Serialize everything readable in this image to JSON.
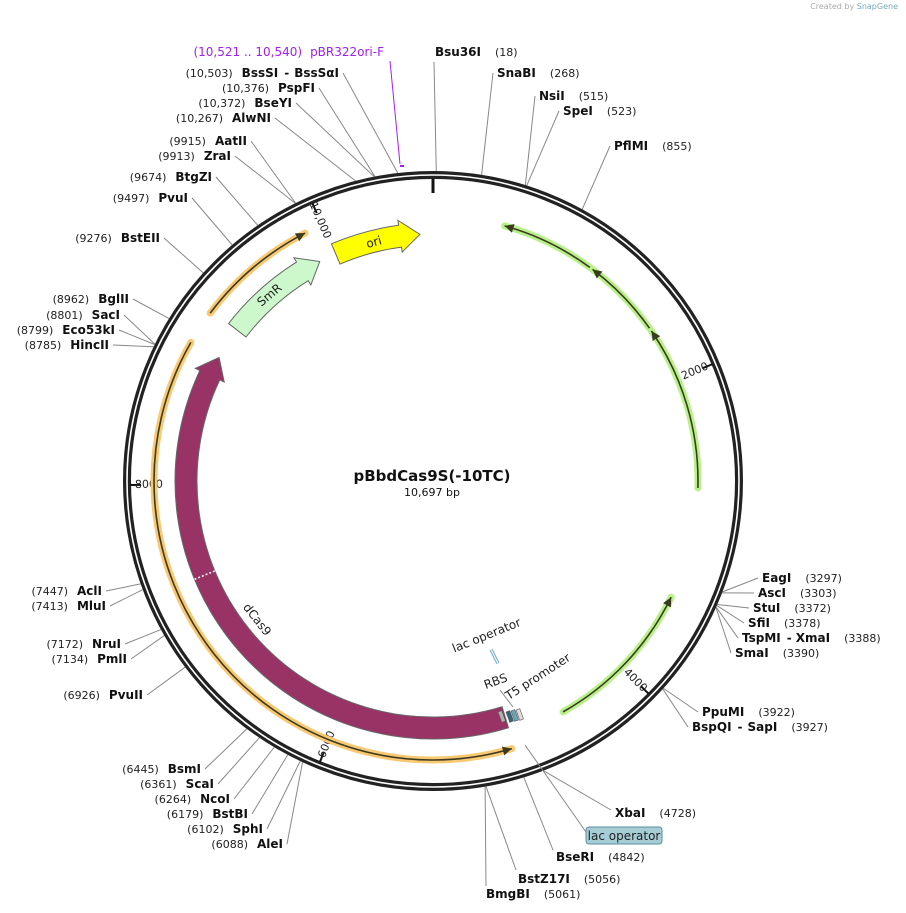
{
  "credit": {
    "prefix": "Created by",
    "brand": "SnapGene"
  },
  "plasmid": {
    "name": "pBbdCas9S(-10TC)",
    "length_label": "10,697 bp",
    "length_bp": 10697
  },
  "ticks": [
    {
      "bp": 2000,
      "label": "2000"
    },
    {
      "bp": 4000,
      "label": "4000"
    },
    {
      "bp": 6000,
      "label": "6000"
    },
    {
      "bp": 8000,
      "label": "8000"
    },
    {
      "bp": 10000,
      "label": "10,000"
    }
  ],
  "features": [
    {
      "name": "ori",
      "start": 10008,
      "end": 10607,
      "strand": 1,
      "style": "wide",
      "color": "#ffff00"
    },
    {
      "name": "SmR",
      "start": 9140,
      "end": 9886,
      "strand": 1,
      "style": "wide",
      "color": "#ccf8cc"
    },
    {
      "name": "dCas9",
      "start": 4843,
      "end": 8914,
      "strand": 1,
      "style": "wide",
      "color": "#993366"
    },
    {
      "name": "",
      "start": 9122,
      "end": 9886,
      "strand": 1,
      "style": "thin",
      "color": "#f9c872"
    },
    {
      "name": "",
      "start": 4861,
      "end": 8908,
      "strand": -1,
      "style": "thin",
      "color": "#f9c872"
    },
    {
      "name": "",
      "start": 466,
      "end": 1080,
      "strand": -1,
      "style": "thin",
      "color": "#b8f08a"
    },
    {
      "name": "",
      "start": 1100,
      "end": 1630,
      "strand": -1,
      "style": "thin",
      "color": "#b8f08a"
    },
    {
      "name": "",
      "start": 1650,
      "end": 2719,
      "strand": -1,
      "style": "thin",
      "color": "#b8f08a"
    },
    {
      "name": "",
      "start": 3447,
      "end": 4475,
      "strand": -1,
      "style": "thin",
      "color": "#b8f08a"
    }
  ],
  "small_features": {
    "lac_operator": "lac operator",
    "rbs": "RBS",
    "t5_promoter": "T5 promoter",
    "lac_operator_badge": "lac operator"
  },
  "primer": {
    "range": "(10,521 .. 10,540)",
    "name": "pBR322ori-F",
    "pos": 10530,
    "color": "#a020f0"
  },
  "enzymes": [
    {
      "name": "Bsu36I",
      "pos": "(18)",
      "bp": 18,
      "side": "right"
    },
    {
      "name": "SnaBI",
      "pos": "(268)",
      "bp": 268,
      "side": "right"
    },
    {
      "name": "NsiI",
      "pos": "(515)",
      "bp": 515,
      "side": "right"
    },
    {
      "name": "SpeI",
      "pos": "(523)",
      "bp": 523,
      "side": "right"
    },
    {
      "name": "PflMI",
      "pos": "(855)",
      "bp": 855,
      "side": "right"
    },
    {
      "name": "EagI",
      "pos": "(3297)",
      "bp": 3297,
      "side": "right"
    },
    {
      "name": "AscI",
      "pos": "(3303)",
      "bp": 3303,
      "side": "right"
    },
    {
      "name": "StuI",
      "pos": "(3372)",
      "bp": 3372,
      "side": "right"
    },
    {
      "name": "SfiI",
      "pos": "(3378)",
      "bp": 3378,
      "side": "right"
    },
    {
      "name": "TspMI",
      "name2": "XmaI",
      "pos": "(3388)",
      "bp": 3388,
      "side": "right"
    },
    {
      "name": "SmaI",
      "pos": "(3390)",
      "bp": 3390,
      "side": "right"
    },
    {
      "name": "PpuMI",
      "pos": "(3922)",
      "bp": 3922,
      "side": "right"
    },
    {
      "name": "BspQI",
      "name2": "SapI",
      "pos": "(3927)",
      "bp": 3927,
      "side": "right"
    },
    {
      "name": "XbaI",
      "pos": "(4728)",
      "bp": 4728,
      "side": "right"
    },
    {
      "name": "BseRI",
      "pos": "(4842)",
      "bp": 4842,
      "side": "right"
    },
    {
      "name": "BstZ17I",
      "pos": "(5056)",
      "bp": 5056,
      "side": "right"
    },
    {
      "name": "BmgBI",
      "pos": "(5061)",
      "bp": 5061,
      "side": "right"
    },
    {
      "name": "AleI",
      "pos": "(6088)",
      "bp": 6088,
      "side": "left"
    },
    {
      "name": "SphI",
      "pos": "(6102)",
      "bp": 6102,
      "side": "left"
    },
    {
      "name": "BstBI",
      "pos": "(6179)",
      "bp": 6179,
      "side": "left"
    },
    {
      "name": "NcoI",
      "pos": "(6264)",
      "bp": 6264,
      "side": "left"
    },
    {
      "name": "ScaI",
      "pos": "(6361)",
      "bp": 6361,
      "side": "left"
    },
    {
      "name": "BsmI",
      "pos": "(6445)",
      "bp": 6445,
      "side": "left"
    },
    {
      "name": "PvuII",
      "pos": "(6926)",
      "bp": 6926,
      "side": "left"
    },
    {
      "name": "PmlI",
      "pos": "(7134)",
      "bp": 7134,
      "side": "left"
    },
    {
      "name": "NruI",
      "pos": "(7172)",
      "bp": 7172,
      "side": "left"
    },
    {
      "name": "MluI",
      "pos": "(7413)",
      "bp": 7413,
      "side": "left"
    },
    {
      "name": "AclI",
      "pos": "(7447)",
      "bp": 7447,
      "side": "left"
    },
    {
      "name": "HincII",
      "pos": "(8785)",
      "bp": 8785,
      "side": "left"
    },
    {
      "name": "Eco53kI",
      "pos": "(8799)",
      "bp": 8799,
      "side": "left"
    },
    {
      "name": "SacI",
      "pos": "(8801)",
      "bp": 8801,
      "side": "left"
    },
    {
      "name": "BglII",
      "pos": "(8962)",
      "bp": 8962,
      "side": "left"
    },
    {
      "name": "BstEII",
      "pos": "(9276)",
      "bp": 9276,
      "side": "left"
    },
    {
      "name": "PvuI",
      "pos": "(9497)",
      "bp": 9497,
      "side": "left"
    },
    {
      "name": "BtgZI",
      "pos": "(9674)",
      "bp": 9674,
      "side": "left"
    },
    {
      "name": "ZraI",
      "pos": "(9913)",
      "bp": 9913,
      "side": "left"
    },
    {
      "name": "AatII",
      "pos": "(9915)",
      "bp": 9915,
      "side": "left"
    },
    {
      "name": "AlwNI",
      "pos": "(10,267)",
      "bp": 10267,
      "side": "left"
    },
    {
      "name": "BseYI",
      "pos": "(10,372)",
      "bp": 10372,
      "side": "left"
    },
    {
      "name": "PspFI",
      "pos": "(10,376)",
      "bp": 10376,
      "side": "left"
    },
    {
      "name": "BssSI",
      "name2": "BssSαI",
      "pos": "(10,503)",
      "bp": 10503,
      "side": "left"
    }
  ]
}
